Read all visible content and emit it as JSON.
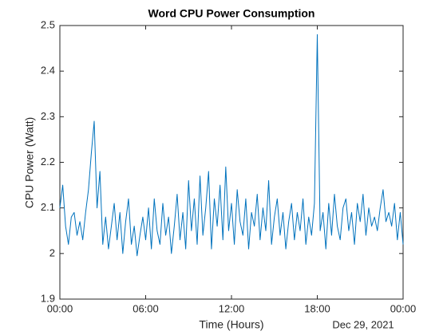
{
  "chart_data": {
    "type": "line",
    "title": "Word CPU Power Consumption",
    "x_label": "Time (Hours)",
    "y_label": "CPU Power (Watt)",
    "x_date_label": "Dec 29, 2021",
    "color": "#0072BD",
    "grid": false,
    "xlim": [
      0,
      24
    ],
    "xticks": [
      {
        "value": 0,
        "label": "00:00"
      },
      {
        "value": 6,
        "label": "06:00"
      },
      {
        "value": 12,
        "label": "12:00"
      },
      {
        "value": 18,
        "label": "18:00"
      },
      {
        "value": 24,
        "label": "00:00"
      }
    ],
    "ylim": [
      1.9,
      2.5
    ],
    "yticks": [
      1.9,
      2,
      2.1,
      2.2,
      2.3,
      2.4,
      2.5
    ],
    "x": [
      0,
      0.2,
      0.4,
      0.6,
      0.8,
      1,
      1.2,
      1.4,
      1.6,
      1.8,
      2,
      2.2,
      2.4,
      2.6,
      2.8,
      3,
      3.2,
      3.4,
      3.6,
      3.8,
      4,
      4.2,
      4.4,
      4.6,
      4.8,
      5,
      5.2,
      5.4,
      5.6,
      5.8,
      6,
      6.2,
      6.4,
      6.6,
      6.8,
      7,
      7.2,
      7.4,
      7.6,
      7.8,
      8,
      8.2,
      8.4,
      8.6,
      8.8,
      9,
      9.2,
      9.4,
      9.6,
      9.8,
      10,
      10.2,
      10.4,
      10.6,
      10.8,
      11,
      11.2,
      11.4,
      11.6,
      11.8,
      12,
      12.2,
      12.4,
      12.6,
      12.8,
      13,
      13.2,
      13.4,
      13.6,
      13.8,
      14,
      14.2,
      14.4,
      14.6,
      14.8,
      15,
      15.2,
      15.4,
      15.6,
      15.8,
      16,
      16.2,
      16.4,
      16.6,
      16.8,
      17,
      17.2,
      17.4,
      17.6,
      17.8,
      18,
      18.2,
      18.4,
      18.6,
      18.8,
      19,
      19.2,
      19.4,
      19.6,
      19.8,
      20,
      20.2,
      20.4,
      20.6,
      20.8,
      21,
      21.2,
      21.4,
      21.6,
      21.8,
      22,
      22.2,
      22.4,
      22.6,
      22.8,
      23,
      23.2,
      23.4,
      23.6,
      23.8,
      24
    ],
    "values": [
      2.1,
      2.15,
      2.06,
      2.02,
      2.08,
      2.09,
      2.04,
      2.07,
      2.03,
      2.09,
      2.14,
      2.22,
      2.29,
      2.1,
      2.18,
      2.02,
      2.08,
      2.01,
      2.06,
      2.11,
      2.03,
      2.09,
      2.0,
      2.07,
      2.12,
      2.02,
      2.06,
      1.995,
      2.04,
      2.08,
      2.03,
      2.1,
      2.01,
      2.12,
      2.05,
      2.02,
      2.11,
      2.04,
      2.08,
      2.0,
      2.06,
      2.13,
      2.03,
      2.09,
      2.01,
      2.16,
      2.05,
      2.12,
      2.02,
      2.17,
      2.04,
      2.1,
      2.18,
      2.01,
      2.12,
      2.06,
      2.15,
      2.03,
      2.19,
      2.05,
      2.11,
      2.02,
      2.14,
      2.07,
      2.04,
      2.12,
      2.01,
      2.09,
      2.06,
      2.13,
      2.03,
      2.1,
      2.05,
      2.16,
      2.02,
      2.08,
      2.12,
      2.04,
      2.09,
      2.01,
      2.07,
      2.11,
      2.03,
      2.09,
      2.05,
      2.12,
      2.02,
      2.08,
      2.04,
      2.11,
      2.48,
      2.05,
      2.09,
      2.01,
      2.11,
      2.04,
      2.13,
      2.06,
      2.03,
      2.1,
      2.12,
      2.05,
      2.09,
      2.02,
      2.11,
      2.07,
      2.13,
      2.04,
      2.1,
      2.06,
      2.08,
      2.05,
      2.1,
      2.14,
      2.07,
      2.09,
      2.06,
      2.11,
      2.03,
      2.09,
      2.02
    ]
  }
}
